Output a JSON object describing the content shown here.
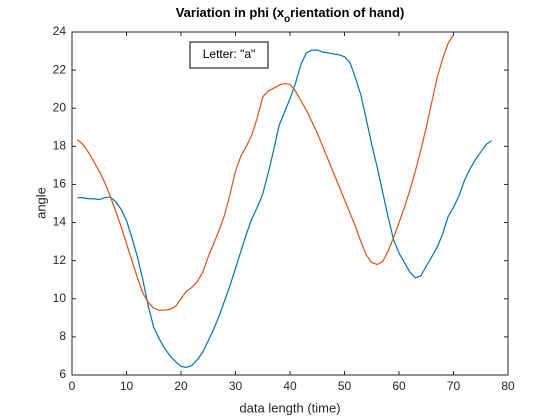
{
  "chart_data": {
    "type": "line",
    "title": [
      "Variation in phi (x",
      "o",
      "rientation of hand)"
    ],
    "xlabel": "data length (time)",
    "ylabel": "angle",
    "annotation": "Letter: \"a\"",
    "xlim": [
      0,
      80
    ],
    "xticks": [
      0,
      10,
      20,
      30,
      40,
      50,
      60,
      70,
      80
    ],
    "ylim": [
      6,
      24
    ],
    "yticks": [
      6,
      8,
      10,
      12,
      14,
      16,
      18,
      20,
      22,
      24
    ],
    "grid": false,
    "series": [
      {
        "color": "#0072BD",
        "x": [
          1,
          2,
          3,
          4,
          5,
          6,
          7,
          8,
          9,
          10,
          11,
          12,
          13,
          14,
          15,
          16,
          17,
          18,
          19,
          20,
          21,
          22,
          23,
          24,
          25,
          26,
          27,
          28,
          29,
          30,
          31,
          32,
          33,
          34,
          35,
          36,
          37,
          38,
          39,
          40,
          41,
          42,
          43,
          44,
          45,
          46,
          47,
          48,
          49,
          50,
          51,
          52,
          53,
          54,
          55,
          56,
          57,
          58,
          59,
          60,
          61,
          62,
          63,
          64,
          65,
          66,
          67,
          68,
          69,
          70,
          71,
          72,
          73,
          74,
          75,
          76,
          77
        ],
        "values": [
          15.3,
          15.3,
          15.25,
          15.25,
          15.2,
          15.3,
          15.35,
          15.1,
          14.7,
          14.1,
          13.2,
          12.2,
          11.0,
          9.6,
          8.5,
          7.9,
          7.4,
          7.0,
          6.7,
          6.45,
          6.4,
          6.5,
          6.8,
          7.2,
          7.8,
          8.4,
          9.1,
          9.9,
          10.7,
          11.6,
          12.5,
          13.4,
          14.2,
          14.8,
          15.5,
          16.6,
          17.8,
          19.1,
          19.8,
          20.5,
          21.3,
          22.3,
          22.9,
          23.05,
          23.05,
          22.95,
          22.9,
          22.85,
          22.8,
          22.7,
          22.4,
          21.6,
          20.7,
          19.4,
          18.1,
          16.9,
          15.6,
          14.3,
          13.1,
          12.4,
          11.9,
          11.4,
          11.1,
          11.2,
          11.7,
          12.2,
          12.7,
          13.4,
          14.3,
          14.8,
          15.4,
          16.2,
          16.8,
          17.3,
          17.7,
          18.1,
          18.3
        ]
      },
      {
        "color": "#D95319",
        "x": [
          1,
          2,
          3,
          4,
          5,
          6,
          7,
          8,
          9,
          10,
          11,
          12,
          13,
          14,
          15,
          16,
          17,
          18,
          19,
          20,
          21,
          22,
          23,
          24,
          25,
          26,
          27,
          28,
          29,
          30,
          31,
          32,
          33,
          34,
          35,
          36,
          37,
          38,
          39,
          40,
          41,
          42,
          43,
          44,
          45,
          46,
          47,
          48,
          49,
          50,
          51,
          52,
          53,
          54,
          55,
          56,
          57,
          58,
          59,
          60,
          61,
          62,
          63,
          64,
          65,
          66,
          67,
          68,
          69,
          70
        ],
        "values": [
          18.35,
          18.1,
          17.7,
          17.2,
          16.7,
          16.1,
          15.4,
          14.6,
          13.8,
          12.9,
          12.0,
          11.1,
          10.3,
          9.8,
          9.5,
          9.4,
          9.4,
          9.45,
          9.6,
          10.0,
          10.4,
          10.6,
          10.9,
          11.4,
          12.2,
          12.9,
          13.6,
          14.4,
          15.5,
          16.7,
          17.5,
          18.0,
          18.6,
          19.5,
          20.6,
          20.9,
          21.05,
          21.2,
          21.3,
          21.25,
          20.9,
          20.4,
          19.9,
          19.3,
          18.7,
          18.0,
          17.3,
          16.6,
          15.9,
          15.2,
          14.5,
          13.8,
          13.0,
          12.3,
          11.9,
          11.8,
          11.95,
          12.5,
          13.2,
          14.0,
          14.8,
          15.7,
          16.7,
          17.8,
          19.0,
          20.3,
          21.6,
          22.6,
          23.4,
          23.85
        ]
      }
    ]
  }
}
